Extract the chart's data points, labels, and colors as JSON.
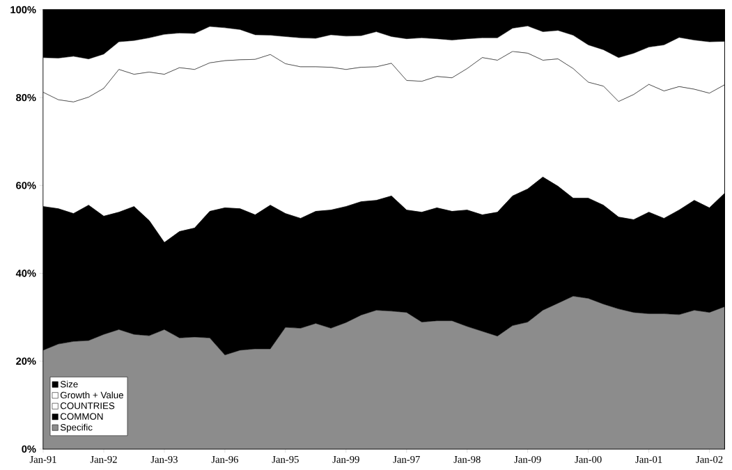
{
  "chart_data": {
    "type": "area",
    "stacked": true,
    "legend": "bottom left",
    "categories": [
      "Jan-91",
      null,
      null,
      null,
      "Jan-92",
      null,
      null,
      null,
      "Jan-93",
      null,
      null,
      null,
      "Jan-96",
      null,
      null,
      null,
      "Jan-95",
      null,
      null,
      null,
      "Jan-99",
      null,
      null,
      null,
      "Jan-97",
      null,
      null,
      null,
      "Jan-98",
      null,
      null,
      null,
      "Jan-09",
      null,
      null,
      null,
      "Jan-00",
      null,
      null,
      null,
      "Jan-01",
      null,
      null,
      null,
      "Jan-02",
      null
    ],
    "ylim": [
      0,
      100
    ],
    "yticks": [
      {
        "value": 0,
        "label": "0%"
      },
      {
        "value": 20,
        "label": "20%"
      },
      {
        "value": 40,
        "label": "40%"
      },
      {
        "value": 60,
        "label": "60%"
      },
      {
        "value": 80,
        "label": "80%"
      },
      {
        "value": 100,
        "label": "100%"
      }
    ],
    "series": [
      {
        "name": "Specific",
        "color": "#8c8c8c",
        "values": [
          22.5,
          23.9,
          24.5,
          24.7,
          26.1,
          27.2,
          26.1,
          25.8,
          27.2,
          25.3,
          25.5,
          25.3,
          21.4,
          22.5,
          22.8,
          22.8,
          27.7,
          27.5,
          28.6,
          27.5,
          28.8,
          30.5,
          31.6,
          31.4,
          31.1,
          28.9,
          29.2,
          29.2,
          27.9,
          26.8,
          25.7,
          28.1,
          28.9,
          31.6,
          33.2,
          34.8,
          34.3,
          33.0,
          31.9,
          31.1,
          30.8,
          30.8,
          30.6,
          31.6,
          31.1,
          32.4
        ]
      },
      {
        "name": "COMMON",
        "color": "#000000",
        "values": [
          32.7,
          30.8,
          29.1,
          30.8,
          26.9,
          26.7,
          29.1,
          26.2,
          19.8,
          24.2,
          24.8,
          28.8,
          33.5,
          32.2,
          30.5,
          32.7,
          25.9,
          25.0,
          25.5,
          26.9,
          26.4,
          25.8,
          25.0,
          26.2,
          23.3,
          25.0,
          25.7,
          24.9,
          26.5,
          26.5,
          28.2,
          29.5,
          30.3,
          30.3,
          26.6,
          22.3,
          22.8,
          22.5,
          20.9,
          21.1,
          23.1,
          21.7,
          23.8,
          25.0,
          23.8,
          25.8
        ]
      },
      {
        "name": "COUNTRIES",
        "color": "#ffffff",
        "values": [
          26.0,
          24.8,
          25.4,
          24.6,
          29.1,
          32.5,
          30.1,
          33.8,
          38.3,
          37.3,
          36.1,
          33.8,
          33.5,
          33.9,
          35.4,
          34.3,
          34.1,
          34.5,
          32.9,
          32.5,
          31.2,
          30.6,
          30.4,
          30.2,
          29.5,
          29.8,
          29.9,
          30.4,
          32.2,
          35.8,
          34.6,
          32.9,
          30.9,
          26.6,
          29.0,
          29.5,
          26.4,
          27.1,
          26.3,
          28.5,
          29.1,
          29.0,
          28.1,
          25.3,
          26.1,
          24.7
        ]
      },
      {
        "name": "Growth + Value",
        "color": "#ffffff",
        "values": [
          7.9,
          9.5,
          10.4,
          8.7,
          7.8,
          6.3,
          7.7,
          7.8,
          9.1,
          7.9,
          8.2,
          8.3,
          7.5,
          6.9,
          5.6,
          4.4,
          6.2,
          6.6,
          6.5,
          7.4,
          7.6,
          7.2,
          8.0,
          6.1,
          9.5,
          9.9,
          8.6,
          8.6,
          6.8,
          4.5,
          5.1,
          5.3,
          6.2,
          6.5,
          6.5,
          7.6,
          8.5,
          8.3,
          10.0,
          9.4,
          8.5,
          10.5,
          11.2,
          11.2,
          11.7,
          9.9
        ]
      },
      {
        "name": "Size",
        "color": "#000000",
        "values": [
          10.9,
          11.0,
          10.6,
          11.2,
          10.1,
          7.3,
          7.0,
          6.4,
          5.6,
          5.3,
          5.4,
          3.8,
          4.1,
          4.5,
          5.7,
          5.8,
          6.1,
          6.4,
          6.5,
          5.7,
          6.0,
          5.9,
          5.0,
          6.1,
          6.6,
          6.4,
          6.6,
          6.9,
          6.6,
          6.4,
          6.4,
          4.2,
          3.7,
          5.0,
          4.7,
          5.8,
          8.0,
          9.1,
          10.9,
          9.9,
          8.5,
          8.0,
          6.3,
          6.9,
          7.3,
          7.2
        ]
      }
    ]
  }
}
